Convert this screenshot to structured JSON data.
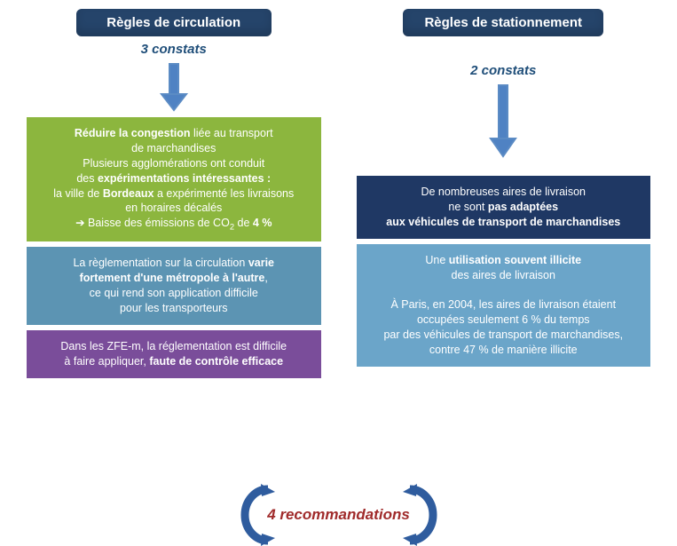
{
  "colors": {
    "header_bg": "#25446a",
    "subtitle": "#1f4e79",
    "arrow_stroke": "#5b8bc4",
    "arrow_fill": "#4f82c3",
    "left_box1": "#8cb63e",
    "left_box2": "#5c94b3",
    "left_box3": "#7a4d9a",
    "right_box1": "#1f3864",
    "right_box2": "#6ba5c9",
    "bottom_text": "#a02b2b",
    "curve": "#2f5c9e"
  },
  "left": {
    "header": "Règles de circulation",
    "subtitle": "3 constats",
    "boxes": [
      "<b>Réduire la congestion</b> liée au transport<br>de marchandises<br>Plusieurs agglomérations ont conduit<br>des <b>expérimentations intéressantes :</b><br>la ville de <b>Bordeaux</b> a expérimenté les livraisons<br>en horaires décalés<br>➔ Baisse des émissions de CO<sub>2</sub> de <b>4 %</b>",
      "La règlementation sur la circulation <b>varie<br>fortement d'une métropole à l'autre</b>,<br>ce qui rend son application difficile<br>pour les transporteurs",
      "Dans les ZFE-m, la réglementation est difficile<br>à faire appliquer, <b>faute de contrôle efficace</b>"
    ]
  },
  "right": {
    "header": "Règles de stationnement",
    "subtitle": "2 constats",
    "boxes": [
      "De nombreuses aires de livraison<br>ne sont <b>pas adaptées</b><br><b>aux véhicules de transport de marchandises</b>",
      "Une <b>utilisation souvent illicite</b><br>des aires de livraison<br><br>À Paris, en 2004, les aires de livraison étaient<br>occupées seulement 6 % du temps<br>par des véhicules de transport de marchandises,<br>contre 47 % de manière illicite"
    ]
  },
  "bottom_label": "4 recommandations"
}
